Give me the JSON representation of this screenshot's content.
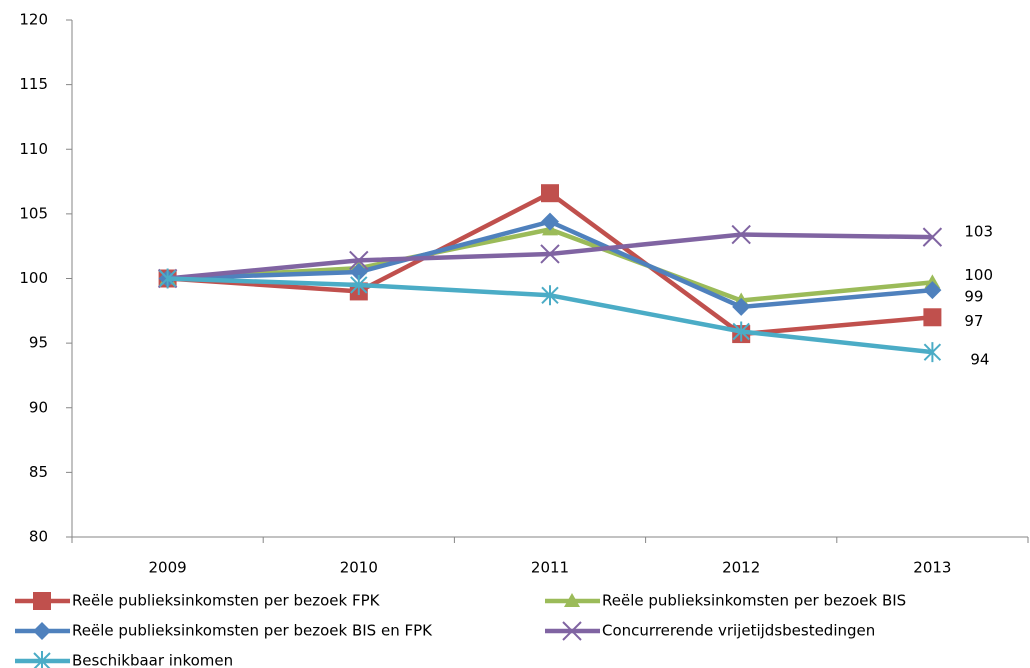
{
  "chart_data": {
    "type": "line",
    "categories": [
      "2009",
      "2010",
      "2011",
      "2012",
      "2013"
    ],
    "ylim": [
      80,
      120
    ],
    "yticks": [
      80,
      85,
      90,
      95,
      100,
      105,
      110,
      115,
      120
    ],
    "legend": "bottom",
    "series": [
      {
        "name": "Reële  publieksinkomsten per bezoek FPK",
        "color": "#c0504d",
        "marker": "square",
        "values": [
          100,
          99.0,
          106.6,
          95.7,
          97.0
        ],
        "value_labels": [
          null,
          null,
          null,
          null,
          "97"
        ]
      },
      {
        "name": "Reële  publieksinkomsten per bezoek BIS",
        "color": "#9bbb59",
        "marker": "triangle",
        "values": [
          100,
          100.8,
          103.8,
          98.3,
          99.7
        ],
        "value_labels": [
          null,
          null,
          null,
          null,
          "100"
        ]
      },
      {
        "name": "Reële publieksinkomsten per bezoek BIS en FPK",
        "color": "#4f81bd",
        "marker": "diamond",
        "values": [
          100,
          100.5,
          104.4,
          97.8,
          99.1
        ],
        "value_labels": [
          null,
          null,
          null,
          null,
          "99"
        ]
      },
      {
        "name": "Concurrerende vrijetijdsbestedingen",
        "color": "#8064a2",
        "marker": "x",
        "values": [
          100,
          101.4,
          101.9,
          103.4,
          103.2
        ],
        "value_labels": [
          null,
          null,
          null,
          null,
          "103"
        ]
      },
      {
        "name": "Beschikbaar inkomen",
        "color": "#4bacc6",
        "marker": "star",
        "values": [
          100,
          99.5,
          98.7,
          95.9,
          94.3
        ],
        "value_labels": [
          null,
          null,
          null,
          null,
          "94"
        ]
      }
    ]
  }
}
